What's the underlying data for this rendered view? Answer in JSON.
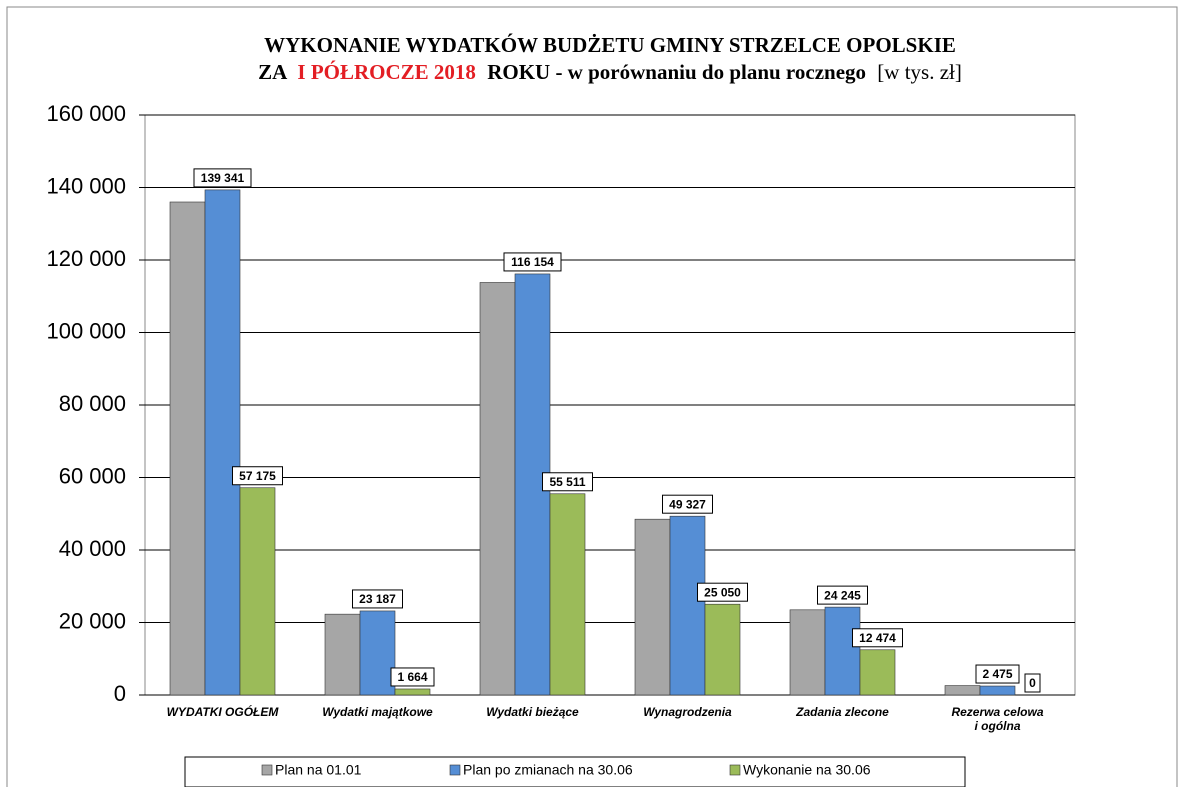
{
  "chart_data": {
    "type": "bar",
    "title": {
      "line1": "WYKONANIE WYDATKÓW BUDŻETU GMINY STRZELCE OPOLSKIE",
      "line2": [
        "ZA",
        "I PÓŁROCZE 2018",
        "ROKU - w porównaniu do planu rocznego",
        "[w tys. zł]"
      ]
    },
    "categories": [
      "WYDATKI OGÓŁEM",
      "Wydatki majątkowe",
      "Wydatki bieżące",
      "Wynagrodzenia",
      "Zadania zlecone",
      "Rezerwa celowa\ni ogólna"
    ],
    "series": [
      {
        "name": "Plan na 01.01",
        "color": "#a6a6a6",
        "values": [
          136000,
          22300,
          113800,
          48500,
          23500,
          2600
        ]
      },
      {
        "name": "Plan po zmianach na 30.06",
        "color": "#558ed5",
        "values": [
          139341,
          23187,
          116154,
          49327,
          24245,
          2475
        ],
        "value_labels": [
          "139 341",
          "23 187",
          "116 154",
          "49 327",
          "24 245",
          "2 475"
        ]
      },
      {
        "name": "Wykonanie na 30.06",
        "color": "#9bbb59",
        "values": [
          57175,
          1664,
          55511,
          25050,
          12474,
          0
        ],
        "value_labels": [
          "57 175",
          "1 664",
          "55 511",
          "25 050",
          "12 474",
          "0"
        ]
      }
    ],
    "ylim": [
      0,
      160000
    ],
    "yticks": [
      0,
      {
        "value": 20000,
        "label": "20 000"
      },
      {
        "value": 40000,
        "label": "40 000"
      },
      {
        "value": 60000,
        "label": "60 000"
      },
      {
        "value": 80000,
        "label": "80 000"
      },
      {
        "value": 100000,
        "label": "100 000"
      },
      {
        "value": 120000,
        "label": "120 000"
      },
      {
        "value": 140000,
        "label": "140 000"
      },
      {
        "value": 160000,
        "label": "160 000"
      }
    ],
    "grid": true
  }
}
